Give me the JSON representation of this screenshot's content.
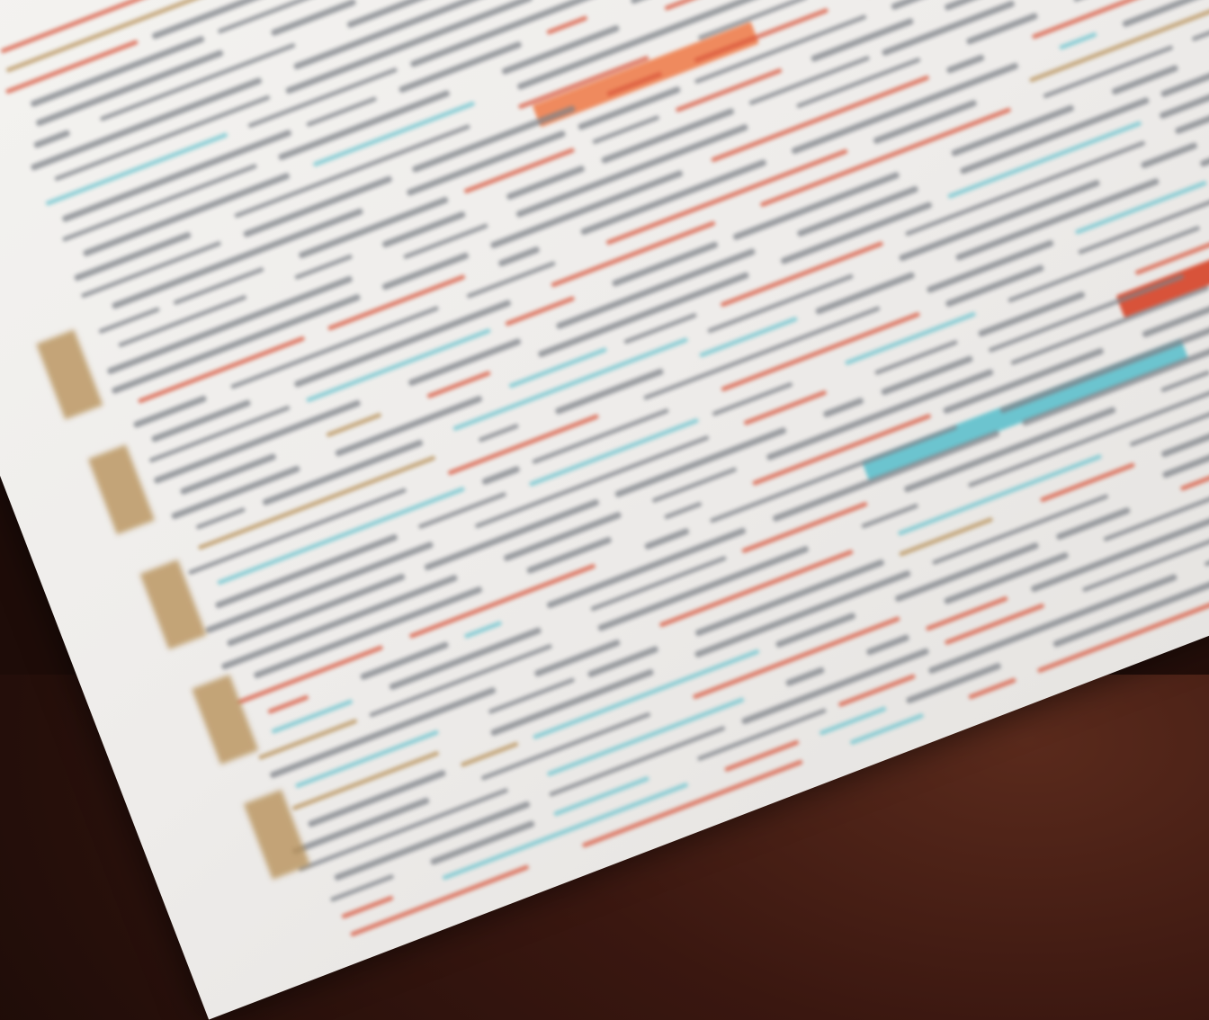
{
  "scene": {
    "background_color": "#3a1710",
    "paper_color": "#f2f1ee"
  },
  "colors": {
    "text_gray": "#7d8288",
    "accent_red": "#d8533a",
    "accent_orange": "#ef8a5e",
    "accent_teal": "#6cc4cf",
    "accent_gold": "#b8925a"
  }
}
